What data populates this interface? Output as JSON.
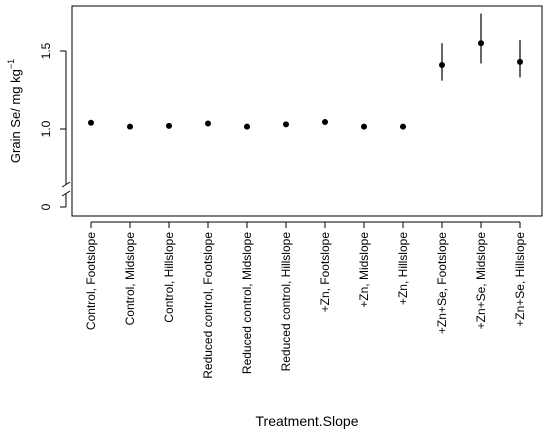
{
  "chart_data": {
    "type": "scatter",
    "xlabel": "Treatment.Slope",
    "ylabel": "Grain Se/ mg kg",
    "ylabel_superscript": "−1",
    "y_ticks": [
      {
        "value": 0,
        "label": "0"
      },
      {
        "value": 1.0,
        "label": "1.0"
      },
      {
        "value": 1.5,
        "label": "1.5"
      }
    ],
    "axis_break": true,
    "grid": false,
    "legend": "none",
    "points": [
      {
        "category": "Control, Footslope",
        "y": 1.04,
        "lower": null,
        "upper": null
      },
      {
        "category": "Control, Midslope",
        "y": 1.015,
        "lower": null,
        "upper": null
      },
      {
        "category": "Control, Hillslope",
        "y": 1.02,
        "lower": null,
        "upper": null
      },
      {
        "category": "Reduced control, Footslope",
        "y": 1.035,
        "lower": null,
        "upper": null
      },
      {
        "category": "Reduced control, Midslope",
        "y": 1.015,
        "lower": null,
        "upper": null
      },
      {
        "category": "Reduced control, Hillslope",
        "y": 1.03,
        "lower": null,
        "upper": null
      },
      {
        "category": "+Zn, Footslope",
        "y": 1.045,
        "lower": null,
        "upper": null
      },
      {
        "category": "+Zn, Midslope",
        "y": 1.015,
        "lower": null,
        "upper": null
      },
      {
        "category": "+Zn, Hillslope",
        "y": 1.015,
        "lower": null,
        "upper": null
      },
      {
        "category": "+Zn+Se, Footslope",
        "y": 1.41,
        "lower": 1.31,
        "upper": 1.55
      },
      {
        "category": "+Zn+Se, Midslope",
        "y": 1.55,
        "lower": 1.42,
        "upper": 1.74
      },
      {
        "category": "+Zn+Se, Hillslope",
        "y": 1.43,
        "lower": 1.33,
        "upper": 1.57
      }
    ],
    "colors": {
      "marker": "#000000",
      "axis": "#000000"
    }
  }
}
